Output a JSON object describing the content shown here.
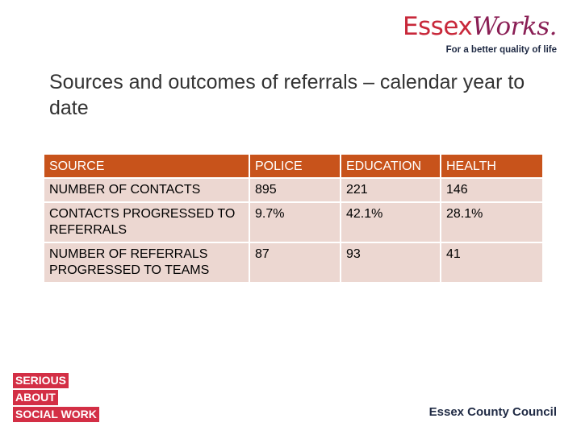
{
  "logo": {
    "brand_part1": "Essex",
    "brand_part2": "Works.",
    "tagline": "For a better quality of life"
  },
  "title": "Sources and outcomes of referrals – calendar year to date",
  "table": {
    "headers": [
      "SOURCE",
      "POLICE",
      "EDUCATION",
      "HEALTH"
    ],
    "rows": [
      [
        "NUMBER OF CONTACTS",
        "895",
        "221",
        "146"
      ],
      [
        "CONTACTS PROGRESSED TO REFERRALS",
        "9.7%",
        "42.1%",
        "28.1%"
      ],
      [
        "NUMBER OF REFERRALS PROGRESSED TO TEAMS",
        "87",
        "93",
        "41"
      ]
    ]
  },
  "badge": {
    "lines": [
      "SERIOUS",
      "ABOUT",
      "SOCIAL WORK"
    ]
  },
  "footer": {
    "council": "Essex County Council"
  }
}
